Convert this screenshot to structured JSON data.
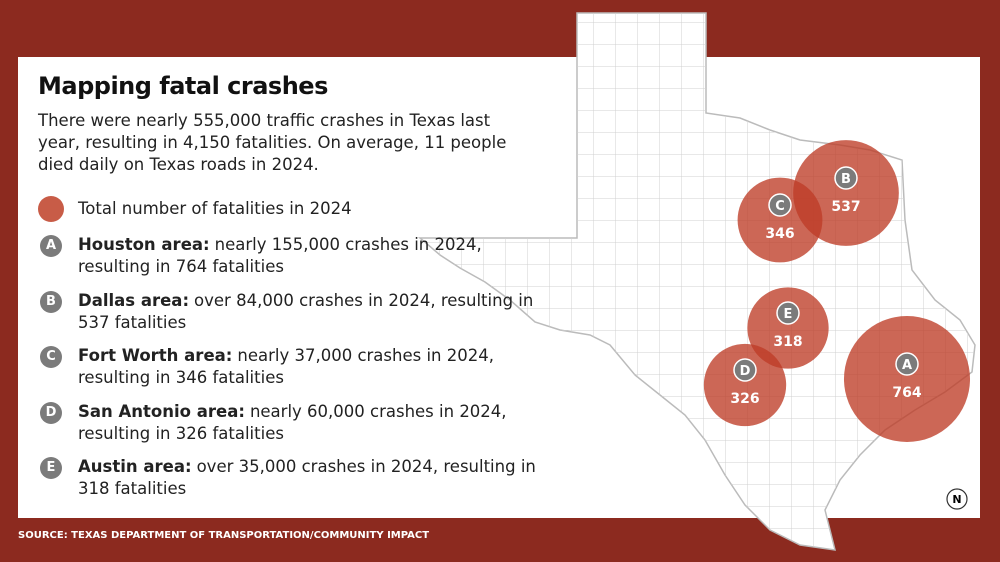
{
  "title": "Mapping fatal crashes",
  "intro": "There were nearly 555,000 traffic crashes in Texas last year, resulting in 4,150 fatalities. On average, 11 people died daily on Texas roads in 2024.",
  "legend": "Total number of fatalities in 2024",
  "areas": [
    {
      "letter": "A",
      "name": "Houston area:",
      "text": "nearly 155,000 crashes in 2024, resulting in 764 fatalities",
      "fatalities": 764
    },
    {
      "letter": "B",
      "name": "Dallas area:",
      "text": "over 84,000 crashes in 2024, resulting in 537 fatalities",
      "fatalities": 537
    },
    {
      "letter": "C",
      "name": "Fort Worth area:",
      "text": "nearly 37,000 crashes in 2024, resulting in 346 fatalities",
      "fatalities": 346
    },
    {
      "letter": "D",
      "name": "San Antonio area:",
      "text": "nearly 60,000 crashes in 2024, resulting in 326 fatalities",
      "fatalities": 326
    },
    {
      "letter": "E",
      "name": "Austin area:",
      "text": "over 35,000 crashes in 2024, resulting in 318 fatalities",
      "fatalities": 318
    }
  ],
  "source": "SOURCE: TEXAS DEPARTMENT OF TRANSPORTATION/COMMUNITY IMPACT",
  "north": "N"
}
